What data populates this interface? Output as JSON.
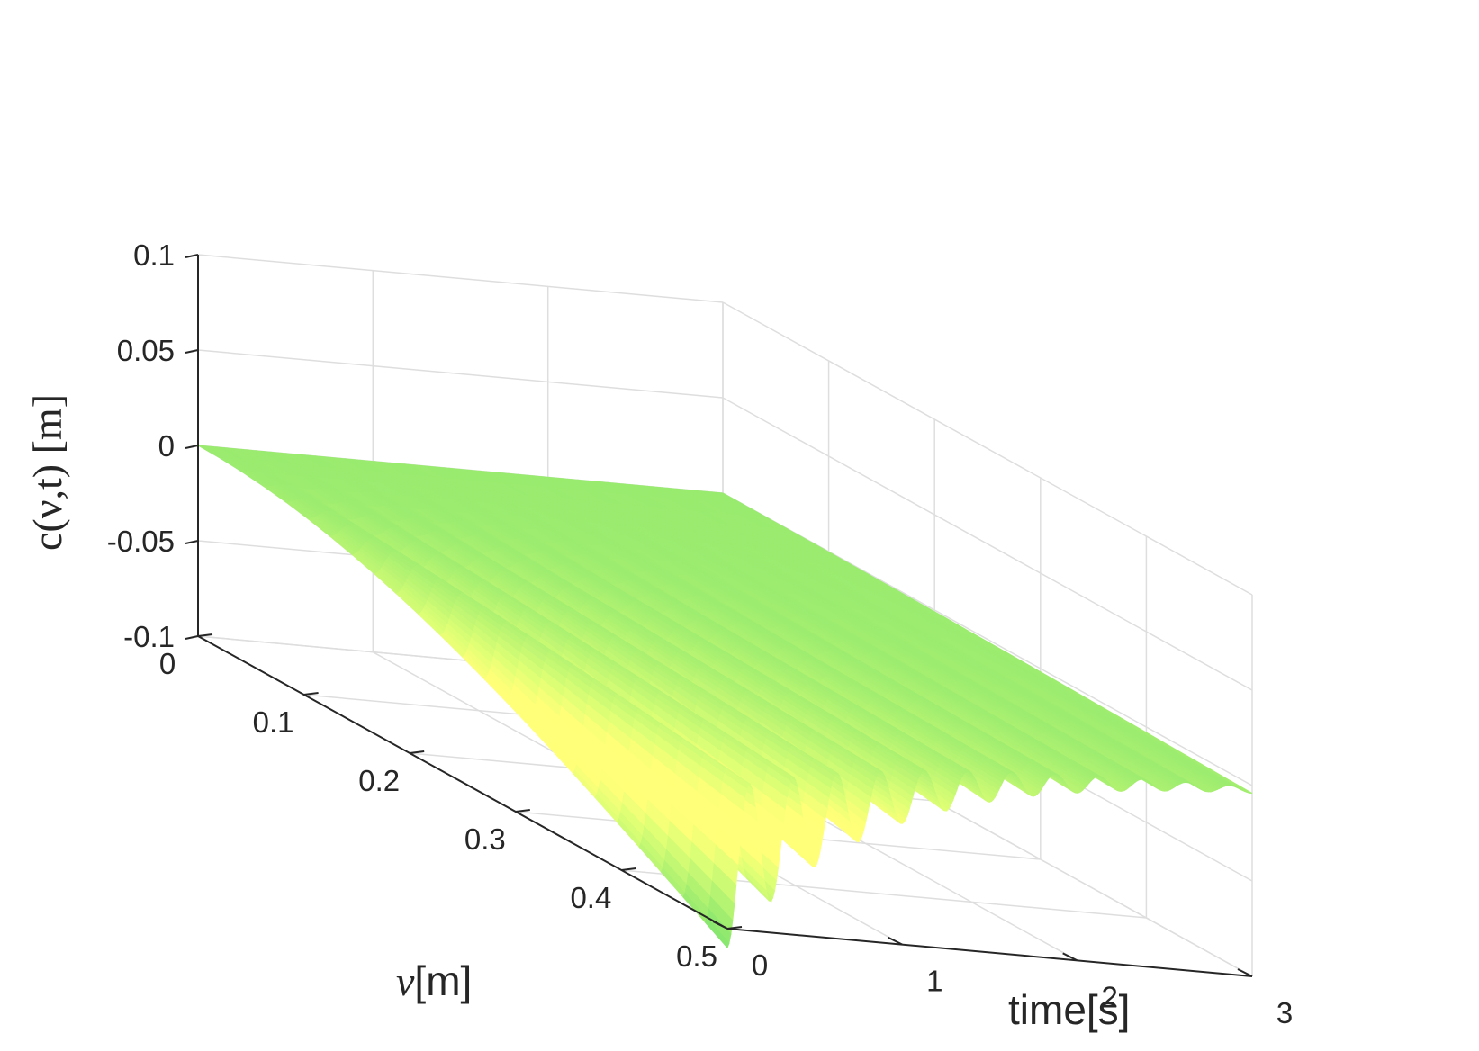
{
  "chart_data": {
    "type": "surface",
    "title": "",
    "xlabel": "time[s]",
    "ylabel_symbol": "ν",
    "ylabel_unit": "[m]",
    "zlabel": "c(ν,t) [m]",
    "xlim": [
      0,
      3
    ],
    "ylim": [
      0,
      0.5
    ],
    "zlim": [
      -0.1,
      0.1
    ],
    "x_ticks": [
      "0",
      "1",
      "2",
      "3"
    ],
    "y_ticks": [
      "0",
      "0.1",
      "0.2",
      "0.3",
      "0.4",
      "0.5"
    ],
    "z_ticks": [
      "0.1",
      "0.05",
      "0",
      "-0.05",
      "-0.1"
    ],
    "grid": true,
    "colormap": "summer",
    "colormap_low": "#008066",
    "colormap_high": "#ffff66",
    "surface_model": {
      "description": "c(nu, t): deflection profile, deepest at t=0 and nu=0.5, oscillating and decaying in time",
      "initial_tip_value": -0.11,
      "oscillation_period_s": 0.25,
      "decay_rate_per_s": 1.1,
      "edge_values": {
        "t": [
          0,
          0.12,
          0.25,
          0.5,
          0.75,
          1.0,
          1.5,
          2.0,
          2.5,
          3.0
        ],
        "nu_0_5": [
          -0.11,
          -0.032,
          -0.082,
          -0.066,
          -0.054,
          -0.044,
          -0.03,
          -0.02,
          -0.012,
          -0.004
        ]
      }
    }
  }
}
